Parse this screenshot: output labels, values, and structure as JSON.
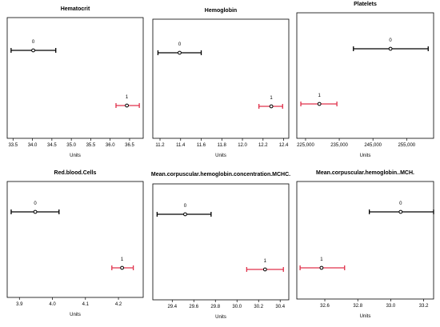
{
  "chart_data": [
    {
      "type": "errorbar",
      "title": "Hematocrit",
      "xlabel": "Units",
      "xticks": [
        33.5,
        34.0,
        34.5,
        35.0,
        35.5,
        36.0,
        36.5
      ],
      "xtick_labels": [
        "33.5",
        "34.0",
        "34.5",
        "35.0",
        "35.5",
        "36.0",
        "36.5"
      ],
      "xlim": [
        33.35,
        36.85
      ],
      "groups": [
        {
          "label": "0",
          "mean": 34.02,
          "lower": 33.45,
          "upper": 34.6,
          "color": "#000000"
        },
        {
          "label": "1",
          "mean": 36.43,
          "lower": 36.15,
          "upper": 36.75,
          "color": "#e0304a"
        }
      ]
    },
    {
      "type": "errorbar",
      "title": "Hemoglobin",
      "xlabel": "Units",
      "xticks": [
        11.2,
        11.4,
        11.6,
        11.8,
        12.0,
        12.2,
        12.4
      ],
      "xtick_labels": [
        "11.2",
        "11.4",
        "11.6",
        "11.8",
        "12.0",
        "12.2",
        "12.4"
      ],
      "xlim": [
        11.13,
        12.45
      ],
      "groups": [
        {
          "label": "0",
          "mean": 11.39,
          "lower": 11.18,
          "upper": 11.6,
          "color": "#000000"
        },
        {
          "label": "1",
          "mean": 12.28,
          "lower": 12.16,
          "upper": 12.39,
          "color": "#e0304a"
        }
      ]
    },
    {
      "type": "errorbar",
      "title": "Platelets",
      "xlabel": "Units",
      "xticks": [
        225000,
        235000,
        245000,
        255000
      ],
      "xtick_labels": [
        "225,000",
        "235,000",
        "245,000",
        "255,000"
      ],
      "xlim": [
        222400,
        263000
      ],
      "groups": [
        {
          "label": "0",
          "mean": 250200,
          "lower": 239200,
          "upper": 261400,
          "color": "#000000"
        },
        {
          "label": "1",
          "mean": 229100,
          "lower": 223600,
          "upper": 234300,
          "color": "#e0304a"
        }
      ]
    },
    {
      "type": "errorbar",
      "title": "Red.blood.Cells",
      "xlabel": "Units",
      "xticks": [
        3.9,
        4.0,
        4.1,
        4.2
      ],
      "xtick_labels": [
        "3.9",
        "4.0",
        "4.1",
        "4.2"
      ],
      "xlim": [
        3.863,
        4.275
      ],
      "groups": [
        {
          "label": "0",
          "mean": 3.948,
          "lower": 3.875,
          "upper": 4.02,
          "color": "#000000"
        },
        {
          "label": "1",
          "mean": 4.211,
          "lower": 4.18,
          "upper": 4.245,
          "color": "#e0304a"
        }
      ]
    },
    {
      "type": "errorbar",
      "title": "Mean.corpuscular.hemoglobin.concentration.MCHC.",
      "xlabel": "Units",
      "xticks": [
        29.4,
        29.6,
        29.8,
        30.0,
        30.2,
        30.4
      ],
      "xtick_labels": [
        "29.4",
        "29.6",
        "29.8",
        "30.0",
        "30.2",
        "30.4"
      ],
      "xlim": [
        29.22,
        30.48
      ],
      "groups": [
        {
          "label": "0",
          "mean": 29.52,
          "lower": 29.26,
          "upper": 29.76,
          "color": "#000000"
        },
        {
          "label": "1",
          "mean": 30.26,
          "lower": 30.09,
          "upper": 30.43,
          "color": "#e0304a"
        }
      ]
    },
    {
      "type": "errorbar",
      "title": "Mean.corpuscular.hemoglobin..MCH.",
      "xlabel": "Units",
      "xticks": [
        32.6,
        32.8,
        33.0,
        33.2
      ],
      "xtick_labels": [
        "32.6",
        "32.8",
        "33.0",
        "33.2"
      ],
      "xlim": [
        32.43,
        33.26
      ],
      "groups": [
        {
          "label": "0",
          "mean": 33.06,
          "lower": 32.87,
          "upper": 33.26,
          "color": "#000000"
        },
        {
          "label": "1",
          "mean": 32.58,
          "lower": 32.45,
          "upper": 32.72,
          "color": "#e0304a"
        }
      ]
    }
  ]
}
